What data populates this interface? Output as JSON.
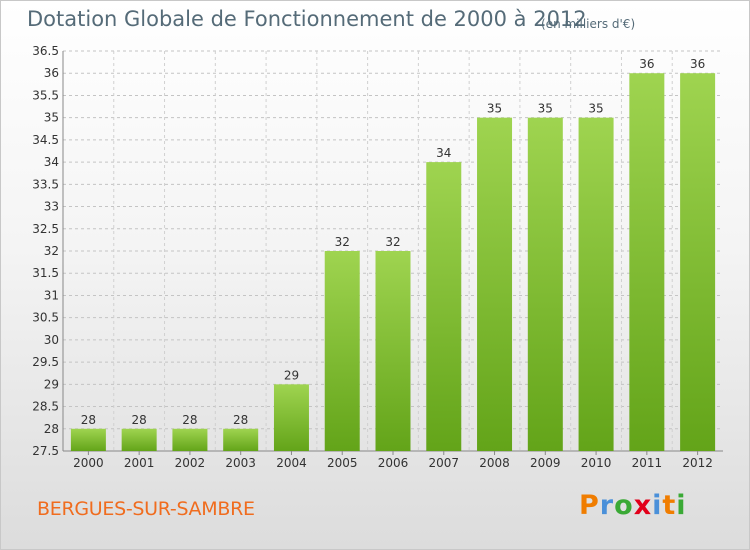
{
  "chart_data": {
    "type": "bar",
    "title": "Dotation Globale de Fonctionnement de 2000 à 2012",
    "subtitle": "(en milliers d'€)",
    "categories": [
      "2000",
      "2001",
      "2002",
      "2003",
      "2004",
      "2005",
      "2006",
      "2007",
      "2008",
      "2009",
      "2010",
      "2011",
      "2012"
    ],
    "values": [
      28,
      28,
      28,
      28,
      29,
      32,
      32,
      34,
      35,
      35,
      35,
      36,
      36
    ],
    "ylim": [
      27.5,
      36.5
    ],
    "yticks": [
      "27.5",
      "28",
      "28.5",
      "29",
      "29.5",
      "30",
      "30.5",
      "31",
      "31.5",
      "32",
      "32.5",
      "33",
      "33.5",
      "34",
      "34.5",
      "35",
      "35.5",
      "36",
      "36.5"
    ],
    "xlabel": "",
    "ylabel": "",
    "grid": true,
    "bar_color": "#8cc63f"
  },
  "footer": {
    "commune": "BERGUES-SUR-SAMBRE",
    "brand_letters": [
      "P",
      "r",
      "o",
      "x",
      "i",
      "t",
      "i"
    ],
    "brand_colors": [
      "#f07d00",
      "#4a90d9",
      "#3aa935",
      "#e2001a",
      "#4a90d9",
      "#f07d00",
      "#3aa935"
    ]
  }
}
